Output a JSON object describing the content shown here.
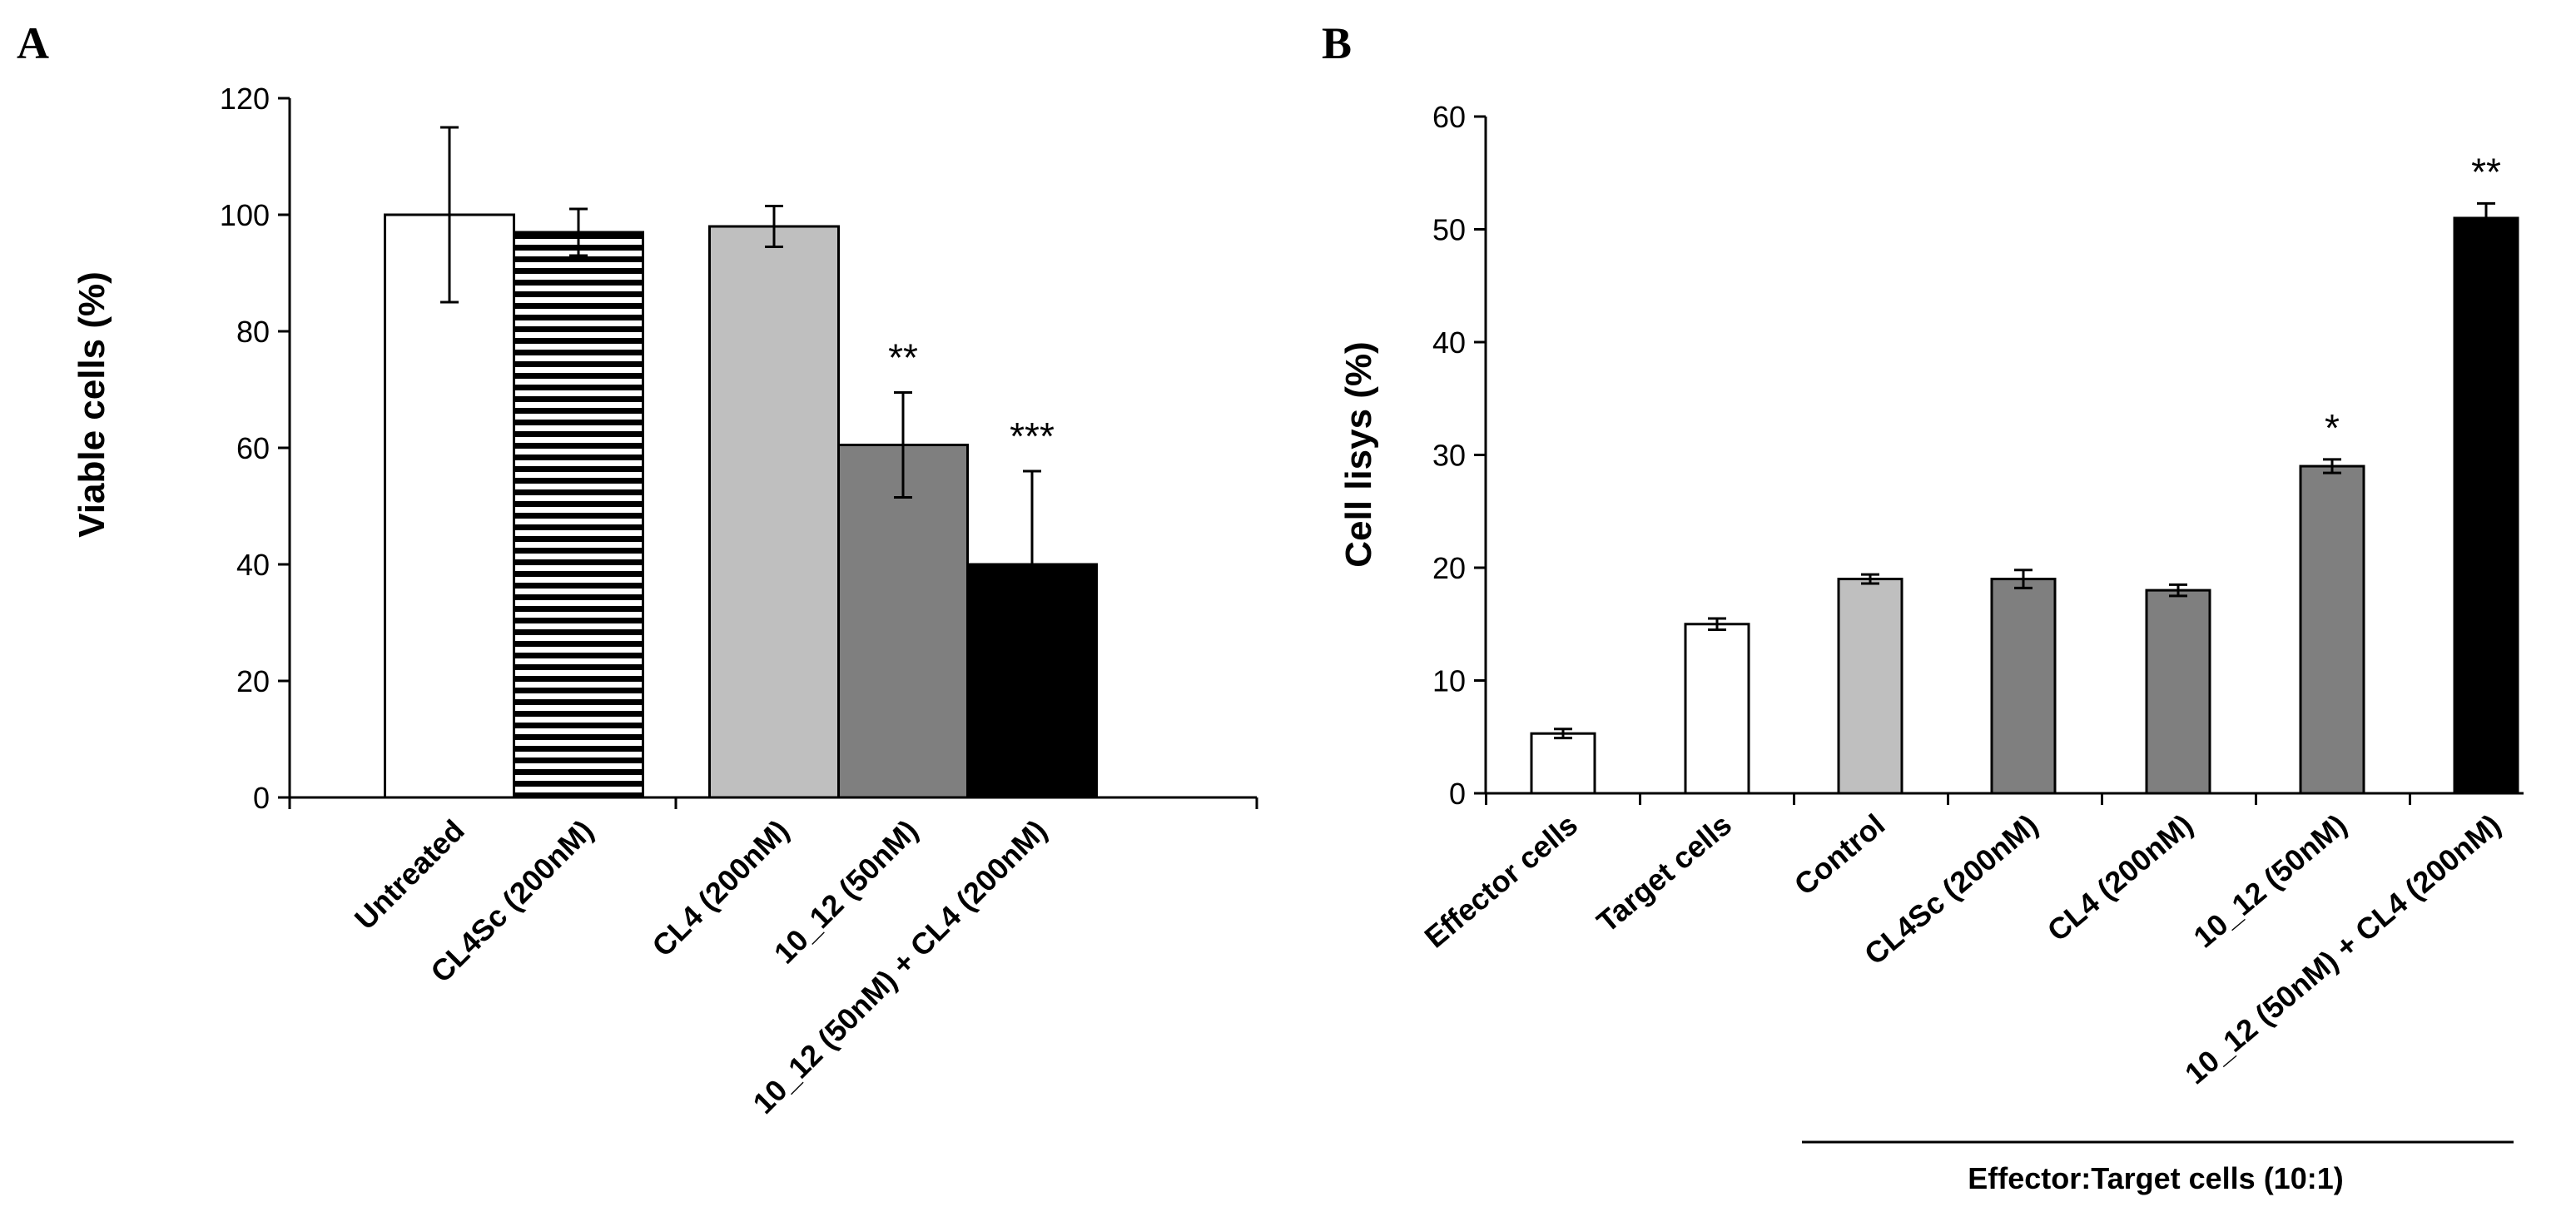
{
  "chart_data": [
    {
      "panel": "A",
      "type": "bar",
      "title": "",
      "xlabel": "",
      "ylabel": "Viable cells (%)",
      "ylim": [
        0,
        120
      ],
      "yticks": [
        "0",
        "20",
        "40",
        "60",
        "80",
        "100",
        "120"
      ],
      "grid": false,
      "categories": [
        "Untreated",
        "CL4Sc (200nM)",
        "CL4 (200nM)",
        "10_12 (50nM)",
        "10_12 (50nM) + CL4 (200nM)"
      ],
      "values": [
        100,
        97,
        98,
        60.5,
        40
      ],
      "errors": [
        15,
        4,
        3.5,
        9,
        16
      ],
      "significance": [
        "",
        "",
        "",
        "**",
        "***"
      ],
      "fills": [
        "#ffffff",
        "stripes",
        "#bfbfbf",
        "#7f7f7f",
        "#000000"
      ]
    },
    {
      "panel": "B",
      "type": "bar",
      "title": "",
      "xlabel": "Effector:Target cells (10:1)",
      "ylabel": "Cell lisys (%)",
      "ylim": [
        0,
        60
      ],
      "yticks": [
        "0",
        "10",
        "20",
        "30",
        "40",
        "50",
        "60"
      ],
      "grid": false,
      "categories": [
        "Effector cells",
        "Target cells",
        "Control",
        "CL4Sc (200nM)",
        "CL4 (200nM)",
        "10_12 (50nM)",
        "10_12 (50nM) + CL4 (200nM)"
      ],
      "values": [
        5.3,
        15,
        19,
        19,
        18,
        29,
        51
      ],
      "errors": [
        0.4,
        0.5,
        0.4,
        0.8,
        0.5,
        0.6,
        1.3
      ],
      "significance": [
        "",
        "",
        "",
        "",
        "",
        "*",
        "**"
      ],
      "fills": [
        "#ffffff",
        "#ffffff",
        "#bfbfbf",
        "#7f7f7f",
        "#7f7f7f",
        "#7f7f7f",
        "#000000"
      ]
    }
  ]
}
